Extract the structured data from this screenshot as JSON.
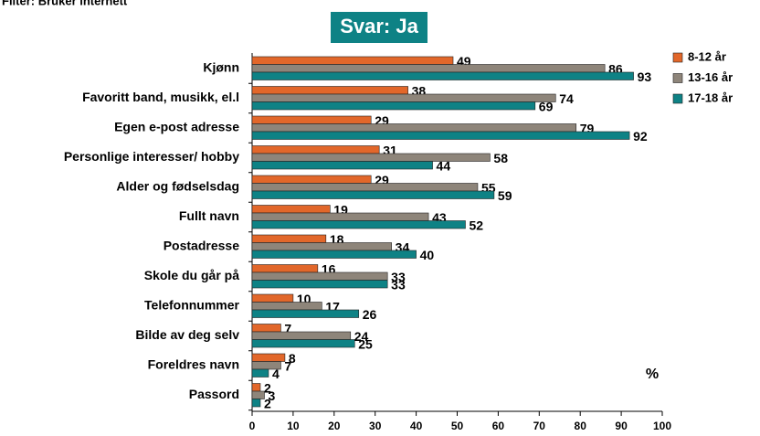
{
  "chart_data": {
    "type": "barh",
    "subtitle": "Filter: Bruker internett",
    "title": "Svar: Ja",
    "annotation": "%",
    "categories": [
      "Kjønn",
      "Favoritt band, musikk, el.l",
      "Egen e-post adresse",
      "Personlige interesser/ hobby",
      "Alder og fødselsdag",
      "Fullt navn",
      "Postadresse",
      "Skole du går på",
      "Telefonnummer",
      "Bilde av deg selv",
      "Foreldres navn",
      "Passord"
    ],
    "series": [
      {
        "name": "8-12 år",
        "color": "#e2672a",
        "values": [
          49,
          38,
          29,
          31,
          29,
          19,
          18,
          16,
          10,
          7,
          8,
          2
        ]
      },
      {
        "name": "13-16 år",
        "color": "#8e857a",
        "values": [
          86,
          74,
          79,
          58,
          55,
          43,
          34,
          33,
          17,
          24,
          7,
          3
        ]
      },
      {
        "name": "17-18 år",
        "color": "#0e8285",
        "values": [
          93,
          69,
          92,
          44,
          59,
          52,
          40,
          33,
          26,
          25,
          4,
          2
        ]
      }
    ],
    "xlim": [
      0,
      100
    ],
    "xticks": [
      0,
      10,
      20,
      30,
      40,
      50,
      60,
      70,
      80,
      90,
      100
    ],
    "legend": "top-right",
    "title_color": "#0e8285"
  }
}
